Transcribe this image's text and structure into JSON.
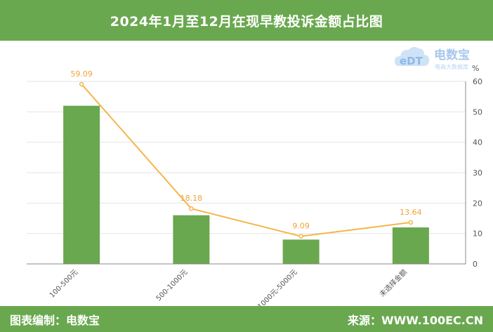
{
  "header": {
    "title": "2024年1月至12月在现早教投诉金额占比图"
  },
  "logo": {
    "brand": "电数宝",
    "sub": "电商大数据库",
    "mark": "eDT"
  },
  "footer": {
    "left": "图表编制：电数宝",
    "right": "来源：WWW.100EC.CN"
  },
  "colors": {
    "bar": "#6aa84f",
    "line": "#f6b54a",
    "header": "#6aa84f",
    "label": "#f0a33a"
  },
  "chart_data": {
    "type": "bar",
    "categories": [
      "100-500元",
      "500-1000元",
      "1000元-5000元",
      "未选择金额"
    ],
    "series": [
      {
        "type": "bar",
        "values": [
          52,
          16,
          8,
          12
        ]
      },
      {
        "type": "line",
        "values": [
          59.09,
          18.18,
          9.09,
          13.64
        ],
        "labels": [
          "59.09",
          "18.18",
          "9.09",
          "13.64"
        ]
      }
    ],
    "ylim": [
      0,
      60
    ],
    "yticks": [
      "0",
      "10",
      "20",
      "30",
      "40",
      "50",
      "60"
    ],
    "y_unit": "%",
    "grid": true
  }
}
